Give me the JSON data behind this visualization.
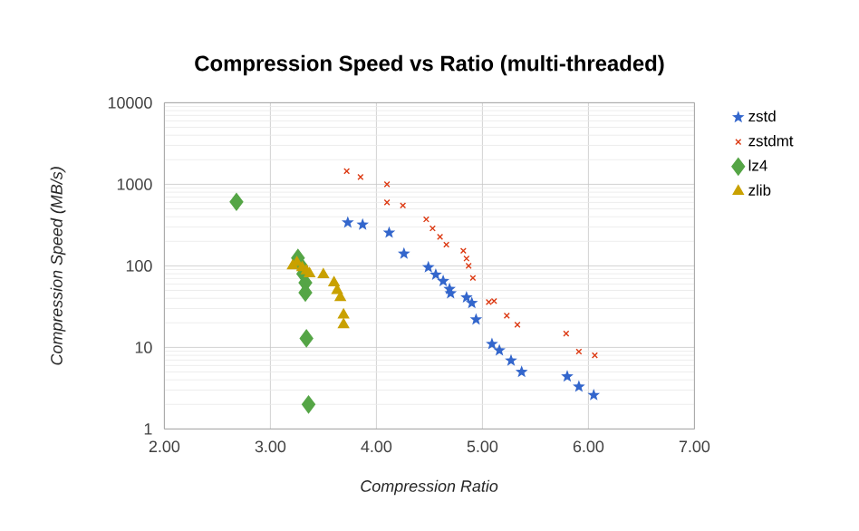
{
  "chart_data": {
    "type": "scatter",
    "title": "Compression Speed vs Ratio (multi-threaded)",
    "xlabel": "Compression Ratio",
    "ylabel": "Compression Speed (MB/s)",
    "xlim": [
      2,
      7
    ],
    "xticks": [
      {
        "value": 2,
        "label": "2.00"
      },
      {
        "value": 3,
        "label": "3.00"
      },
      {
        "value": 4,
        "label": "4.00"
      },
      {
        "value": 5,
        "label": "5.00"
      },
      {
        "value": 6,
        "label": "6.00"
      },
      {
        "value": 7,
        "label": "7.00"
      }
    ],
    "ylim": [
      1,
      10000
    ],
    "yticks": [
      1,
      10,
      100,
      1000,
      10000
    ],
    "log": "y",
    "grid": true,
    "legend": "right",
    "series": [
      {
        "name": "zstd",
        "color": "#3366cc",
        "marker": "star",
        "x": [
          3.73,
          3.87,
          4.12,
          4.26,
          4.49,
          4.56,
          4.63,
          4.69,
          4.7,
          4.85,
          4.9,
          4.94,
          5.09,
          5.16,
          5.27,
          5.37,
          5.8,
          5.91,
          6.05
        ],
        "values": [
          340,
          320,
          255,
          141,
          96,
          78,
          65,
          52,
          46,
          41,
          35,
          22,
          11,
          9.2,
          6.9,
          5,
          4.4,
          3.3,
          2.6
        ]
      },
      {
        "name": "zstdmt",
        "color": "#dc3912",
        "marker": "cross",
        "x": [
          3.72,
          3.85,
          4.1,
          4.1,
          4.25,
          4.47,
          4.53,
          4.6,
          4.66,
          4.82,
          4.85,
          4.87,
          4.91,
          5.06,
          5.11,
          5.23,
          5.33,
          5.79,
          5.91,
          6.06
        ],
        "values": [
          1450,
          1230,
          1000,
          600,
          550,
          372,
          288,
          227,
          182,
          153,
          123,
          100,
          71,
          36,
          37,
          24.5,
          19,
          14.8,
          8.9,
          8
        ]
      },
      {
        "name": "lz4",
        "color": "#55a546",
        "marker": "diamond",
        "x": [
          2.68,
          3.26,
          3.29,
          3.31,
          3.33,
          3.33,
          3.34,
          3.36
        ],
        "values": [
          610,
          125,
          100,
          80,
          62,
          47,
          12.9,
          2
        ]
      },
      {
        "name": "zlib",
        "color": "#c9a100",
        "marker": "triangle",
        "x": [
          3.21,
          3.25,
          3.3,
          3.34,
          3.37,
          3.5,
          3.6,
          3.63,
          3.66,
          3.69,
          3.69
        ],
        "values": [
          100,
          110,
          95,
          87,
          80,
          78,
          62,
          50,
          41,
          25,
          19
        ]
      }
    ]
  }
}
